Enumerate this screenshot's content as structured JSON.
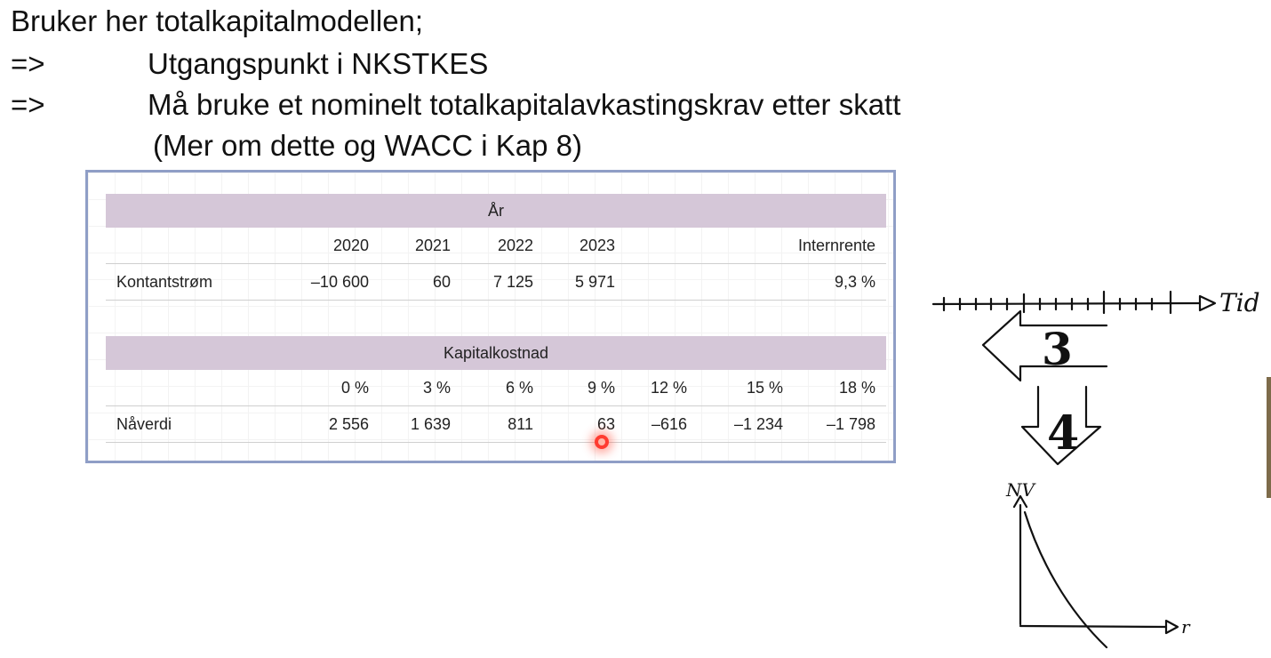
{
  "slide": {
    "lines": [
      "Bruker her totalkapitalmodellen;",
      "Utgangspunkt i NKSTKES",
      "Må bruke et nominelt totalkapitalavkastingskrav etter skatt",
      "(Mer om dette og WACC i Kap 8)"
    ],
    "arrow": "=>"
  },
  "table1": {
    "band": "År",
    "headers": [
      "2020",
      "2021",
      "2022",
      "2023",
      "Internrente"
    ],
    "row_label": "Kontantstrøm",
    "values": [
      "–10 600",
      "60",
      "7 125",
      "5 971",
      "9,3 %"
    ]
  },
  "table2": {
    "band": "Kapitalkostnad",
    "headers": [
      "0 %",
      "3 %",
      "6 %",
      "9 %",
      "12 %",
      "15 %",
      "18 %"
    ],
    "row_label": "Nåverdi",
    "values": [
      "2 556",
      "1 639",
      "811",
      "63",
      "–616",
      "–1 234",
      "–1 798"
    ]
  },
  "sketch": {
    "time_label": "Tid",
    "step_a": "3",
    "step_b": "4",
    "y_label": "NV",
    "x_label": "r"
  },
  "colors": {
    "band": "#d5c7d8",
    "frame": "#8f9ec6",
    "cursor": "#ff3b30"
  }
}
